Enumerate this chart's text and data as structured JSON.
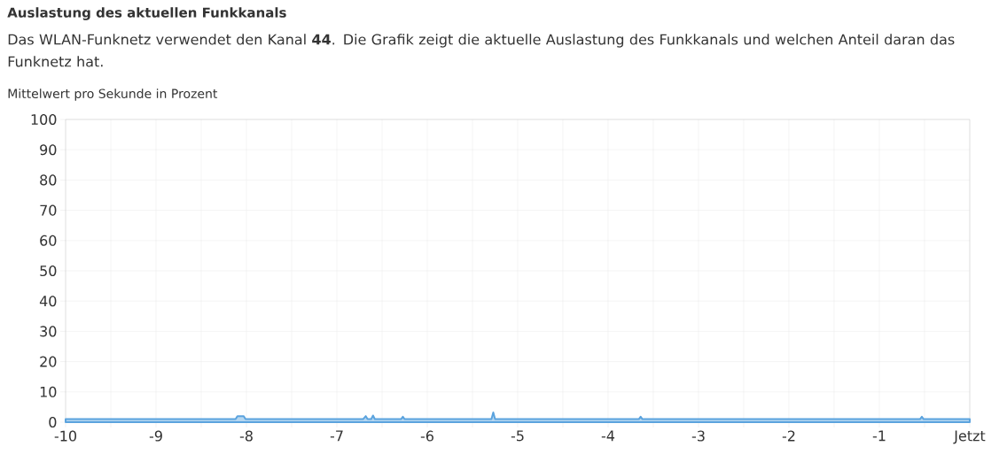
{
  "chart_data": {
    "type": "area",
    "title": "Auslastung des aktuellen Funkkanals",
    "subtitle": "Das WLAN-Funknetz verwendet den Kanal **44**. Die Grafik zeigt die aktuelle Auslastung des Funkkanals und welchen Anteil daran das Funknetz hat.",
    "ylabel": "Mittelwert pro Sekunde in Prozent",
    "x": [
      -10,
      -8.12,
      -8.1,
      -8.03,
      -8.01,
      -6.71,
      -6.68,
      -6.66,
      -6.62,
      -6.6,
      -6.58,
      -6.29,
      -6.27,
      -6.25,
      -5.29,
      -5.27,
      -5.25,
      -3.66,
      -3.64,
      -3.62,
      -0.55,
      -0.53,
      -0.51,
      0
    ],
    "values": [
      1,
      1,
      2,
      2,
      1,
      1,
      2,
      1,
      1,
      2.2,
      1,
      1,
      1.8,
      1,
      1,
      3.2,
      1,
      1,
      1.8,
      1,
      1,
      1.8,
      1,
      1
    ],
    "color": "#5ba3de",
    "xlim": [
      -10,
      0
    ],
    "ylim": [
      0,
      100
    ],
    "xticks": [
      -10,
      {
        "value": -9.5,
        "label": null
      },
      -9,
      {
        "value": -8.5,
        "label": null
      },
      -8,
      {
        "value": -7.5,
        "label": null
      },
      -7,
      {
        "value": -6.5,
        "label": null
      },
      -6,
      {
        "value": -5.5,
        "label": null
      },
      -5,
      {
        "value": -4.5,
        "label": null
      },
      -4,
      {
        "value": -3.5,
        "label": null
      },
      -3,
      {
        "value": -2.5,
        "label": null
      },
      -2,
      {
        "value": -1.5,
        "label": null
      },
      -1,
      {
        "value": -0.5,
        "label": null
      },
      {
        "value": 0,
        "label": "Jetzt"
      }
    ],
    "yticks": [
      0,
      10,
      20,
      30,
      40,
      50,
      60,
      70,
      80,
      90,
      100
    ],
    "grid": true
  }
}
